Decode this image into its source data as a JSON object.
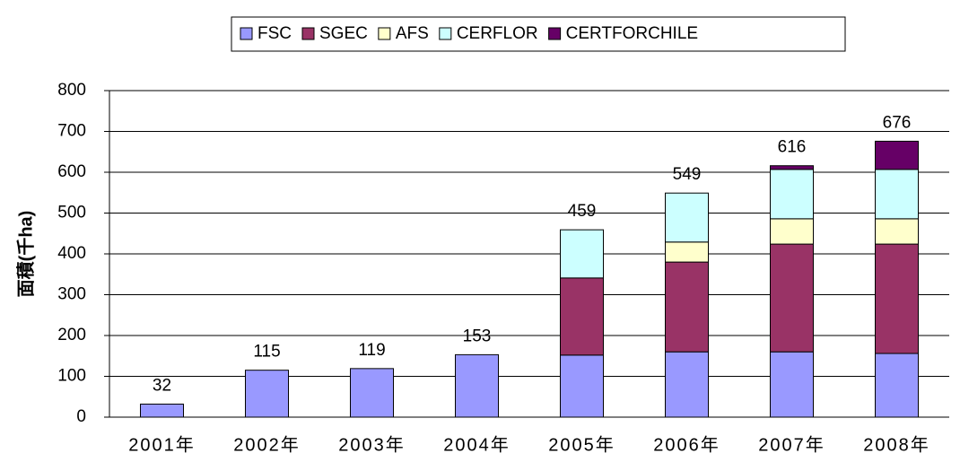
{
  "chart_data": {
    "type": "stacked_bar",
    "y_label": "面積(千ha)",
    "categories": [
      "2001年",
      "2002年",
      "2003年",
      "2004年",
      "2005年",
      "2006年",
      "2007年",
      "2008年"
    ],
    "series": [
      {
        "name": "FSC",
        "color": "#9999ff",
        "values": [
          32,
          115,
          119,
          153,
          152,
          160,
          160,
          156
        ]
      },
      {
        "name": "SGEC",
        "color": "#993366",
        "values": [
          0,
          0,
          0,
          0,
          189,
          220,
          264,
          268
        ]
      },
      {
        "name": "AFS",
        "color": "#ffffcc",
        "values": [
          0,
          0,
          0,
          0,
          0,
          49,
          62,
          62
        ]
      },
      {
        "name": "CERFLOR",
        "color": "#ccffff",
        "values": [
          0,
          0,
          0,
          0,
          118,
          120,
          121,
          121
        ]
      },
      {
        "name": "CERTFORCHILE",
        "color": "#660066",
        "values": [
          0,
          0,
          0,
          0,
          0,
          0,
          9,
          69
        ]
      }
    ],
    "totals": [
      32,
      115,
      119,
      153,
      459,
      549,
      616,
      676
    ],
    "ylim": [
      0,
      800
    ],
    "yticks": [
      0,
      100,
      200,
      300,
      400,
      500,
      600,
      700,
      800
    ],
    "grid": true
  }
}
